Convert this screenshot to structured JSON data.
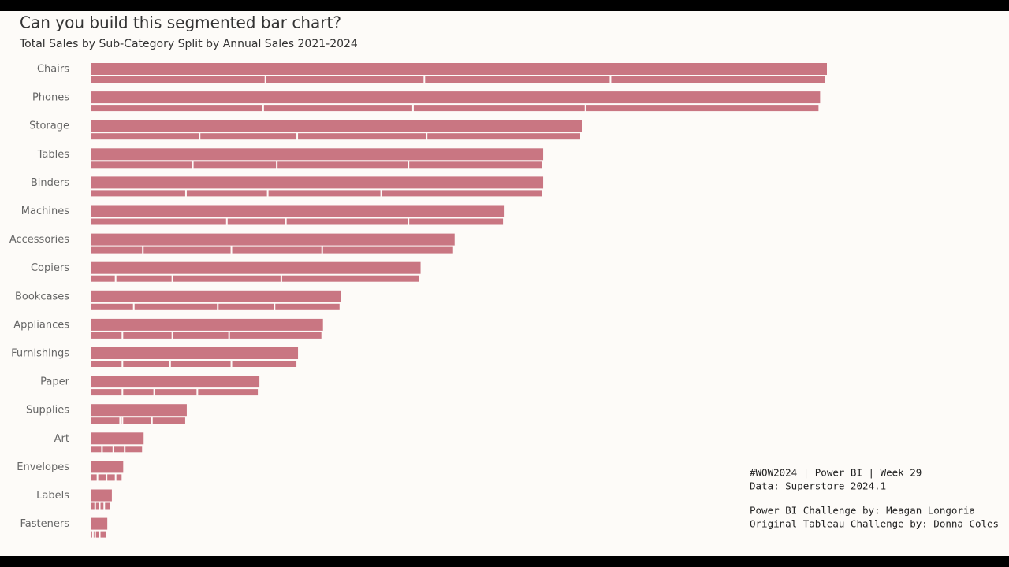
{
  "chart_data": {
    "type": "segmented-bar",
    "title": "Can you build this segmented bar chart?",
    "subtitle": "Total Sales by Sub-Category Split by Annual Sales 2021-2024",
    "categories": [
      "Chairs",
      "Phones",
      "Storage",
      "Tables",
      "Binders",
      "Machines",
      "Accessories",
      "Copiers",
      "Bookcases",
      "Appliances",
      "Furnishings",
      "Paper",
      "Supplies",
      "Art",
      "Envelopes",
      "Labels",
      "Fasteners"
    ],
    "color": "#c97682",
    "series": [
      {
        "color": "#c97682",
        "values": [
          77,
          76,
          48,
          45,
          42,
          60,
          23,
          11,
          19,
          14,
          14,
          14,
          13,
          5,
          3,
          2,
          1
        ]
      },
      {
        "color": "#c97682",
        "values": [
          70,
          66,
          43,
          37,
          36,
          26,
          39,
          25,
          37,
          22,
          21,
          14,
          1,
          5,
          4,
          2,
          1
        ]
      },
      {
        "color": "#c97682",
        "values": [
          82,
          76,
          57,
          58,
          50,
          54,
          40,
          48,
          25,
          25,
          27,
          19,
          13,
          5,
          4,
          2,
          2
        ]
      },
      {
        "color": "#c97682",
        "values": [
          95,
          103,
          68,
          59,
          71,
          42,
          58,
          61,
          29,
          41,
          29,
          27,
          15,
          8,
          3,
          3,
          3
        ]
      }
    ],
    "notes": [
      "#WOW2024 | Power BI | Week 29",
      "Data: Superstore 2024.1",
      "Power BI Challenge by: Meagan Longoria",
      "Original Tableau Challenge by: Donna Coles"
    ]
  }
}
